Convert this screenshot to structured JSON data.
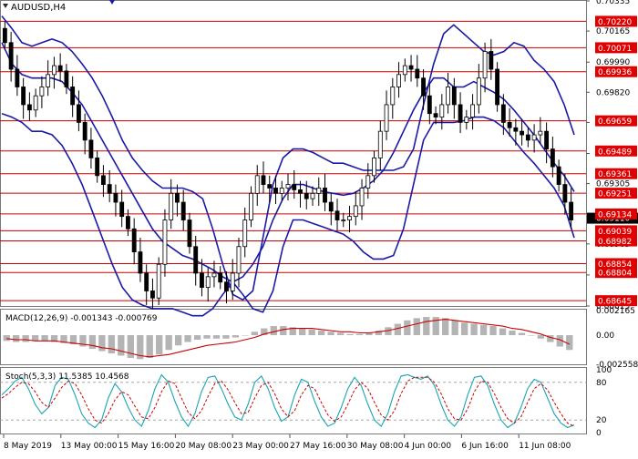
{
  "symbol_title": "AUDUSD,H4",
  "colors": {
    "candle": "#000000",
    "bollinger": "#1a1aa6",
    "level_line": "#cc0000",
    "level_box": "#e00000",
    "macd_hist": "#b4b4b4",
    "macd_signal": "#cc0000",
    "stoch_main": "#1aa5b5",
    "stoch_signal": "#cc0000",
    "grid": "#c8c8c8"
  },
  "chart_data": [
    {
      "type": "candlestick",
      "title": "AUDUSD,H4",
      "ylim": [
        0.68615,
        0.70335
      ],
      "price_axis_labels": [
        "0.70335",
        "0.70165",
        "0.69990",
        "0.69820",
        "0.69650",
        "0.69475",
        "0.69305",
        "0.69135",
        "0.68965",
        "0.68790",
        "0.68615"
      ],
      "current_price": "0.69110",
      "support_resistance_levels": [
        0.7022,
        0.70071,
        0.69936,
        0.69659,
        0.69489,
        0.69361,
        0.69251,
        0.69134,
        0.69039,
        0.68982,
        0.68854,
        0.68804,
        0.68645
      ],
      "close_series": [
        0.701,
        0.6995,
        0.6985,
        0.6975,
        0.6972,
        0.698,
        0.6985,
        0.6992,
        0.6997,
        0.6994,
        0.6985,
        0.6975,
        0.6965,
        0.6955,
        0.6945,
        0.6935,
        0.693,
        0.6925,
        0.692,
        0.6912,
        0.6905,
        0.6892,
        0.688,
        0.687,
        0.6866,
        0.6885,
        0.691,
        0.6925,
        0.692,
        0.691,
        0.6895,
        0.688,
        0.6872,
        0.6878,
        0.688,
        0.6875,
        0.687,
        0.688,
        0.6895,
        0.691,
        0.6925,
        0.6935,
        0.693,
        0.6928,
        0.6925,
        0.6928,
        0.693,
        0.6927,
        0.6925,
        0.6922,
        0.6925,
        0.6928,
        0.692,
        0.6915,
        0.691,
        0.691,
        0.6912,
        0.6918,
        0.6928,
        0.6935,
        0.6945,
        0.696,
        0.6975,
        0.6985,
        0.6992,
        0.6997,
        0.6995,
        0.699,
        0.698,
        0.697,
        0.6968,
        0.6975,
        0.6985,
        0.6975,
        0.6965,
        0.6968,
        0.6975,
        0.699,
        0.7005,
        0.6995,
        0.6975,
        0.6965,
        0.6962,
        0.696,
        0.6958,
        0.6955,
        0.6958,
        0.696,
        0.695,
        0.694,
        0.693,
        0.692,
        0.691
      ],
      "bollinger_upper": [
        0.7025,
        0.7018,
        0.701,
        0.7008,
        0.701,
        0.7012,
        0.701,
        0.7005,
        0.6998,
        0.699,
        0.698,
        0.6968,
        0.6955,
        0.6945,
        0.6938,
        0.6932,
        0.6928,
        0.6928,
        0.6928,
        0.6926,
        0.6922,
        0.6905,
        0.6885,
        0.6868,
        0.6865,
        0.687,
        0.69,
        0.693,
        0.6945,
        0.695,
        0.695,
        0.6948,
        0.6945,
        0.6942,
        0.6942,
        0.694,
        0.6938,
        0.6938,
        0.6938,
        0.6938,
        0.694,
        0.695,
        0.6975,
        0.6998,
        0.7015,
        0.702,
        0.7015,
        0.701,
        0.7005,
        0.7003,
        0.7005,
        0.701,
        0.7008,
        0.7,
        0.6995,
        0.6988,
        0.6975,
        0.6958
      ],
      "bollinger_middle": [
        0.701,
        0.6998,
        0.6992,
        0.699,
        0.699,
        0.699,
        0.6988,
        0.6982,
        0.6975,
        0.6965,
        0.6955,
        0.6945,
        0.6935,
        0.6925,
        0.6915,
        0.6905,
        0.6898,
        0.6894,
        0.689,
        0.6888,
        0.6885,
        0.6882,
        0.6878,
        0.6875,
        0.6878,
        0.6885,
        0.6895,
        0.691,
        0.6922,
        0.693,
        0.693,
        0.6928,
        0.6926,
        0.6925,
        0.6924,
        0.6925,
        0.6928,
        0.6932,
        0.6938,
        0.6948,
        0.696,
        0.6972,
        0.6982,
        0.699,
        0.699,
        0.6985,
        0.6985,
        0.6988,
        0.6985,
        0.6982,
        0.6978,
        0.6972,
        0.6965,
        0.6958,
        0.695,
        0.6942,
        0.6935,
        0.6926
      ],
      "bollinger_lower": [
        0.697,
        0.6968,
        0.6965,
        0.696,
        0.696,
        0.6958,
        0.6952,
        0.6942,
        0.693,
        0.6915,
        0.69,
        0.6885,
        0.6872,
        0.6865,
        0.6862,
        0.686,
        0.686,
        0.686,
        0.6858,
        0.6856,
        0.6856,
        0.686,
        0.6868,
        0.6875,
        0.6868,
        0.686,
        0.6858,
        0.687,
        0.6895,
        0.691,
        0.691,
        0.6908,
        0.6906,
        0.6904,
        0.6902,
        0.6898,
        0.6892,
        0.6888,
        0.6888,
        0.689,
        0.6905,
        0.693,
        0.6955,
        0.6965,
        0.6965,
        0.6965,
        0.6966,
        0.6968,
        0.6968,
        0.6966,
        0.6962,
        0.6955,
        0.6948,
        0.6942,
        0.6935,
        0.6928,
        0.6918,
        0.69
      ]
    },
    {
      "type": "bar",
      "title": "MACD(12,26,9)",
      "values_label": [
        "-0.001343",
        "-0.000769"
      ],
      "ylim": [
        -0.002558,
        0.002165
      ],
      "axis_labels": [
        "0.002165",
        "0.00",
        "-0.002558"
      ],
      "histogram": [
        -0.0005,
        -0.0006,
        -0.0006,
        -0.0005,
        -0.0005,
        -0.0006,
        -0.0007,
        -0.0008,
        -0.001,
        -0.0012,
        -0.0014,
        -0.0016,
        -0.0018,
        -0.002,
        -0.0021,
        -0.002,
        -0.0017,
        -0.0013,
        -0.0009,
        -0.0006,
        -0.0004,
        -0.0003,
        -0.0003,
        -0.0003,
        -0.0002,
        0.0,
        0.0003,
        0.0006,
        0.0008,
        0.0008,
        0.0007,
        0.0006,
        0.0005,
        0.0004,
        0.0003,
        0.0002,
        0.0001,
        0.0001,
        0.0002,
        0.0004,
        0.0007,
        0.001,
        0.0013,
        0.0015,
        0.0016,
        0.0016,
        0.0015,
        0.0013,
        0.0011,
        0.001,
        0.0009,
        0.0008,
        0.0006,
        0.0004,
        0.0002,
        0.0,
        -0.0003,
        -0.0006,
        -0.001,
        -0.0013
      ],
      "signal": [
        -0.0003,
        -0.0004,
        -0.0004,
        -0.0005,
        -0.0005,
        -0.0005,
        -0.0006,
        -0.0007,
        -0.0008,
        -0.0009,
        -0.0011,
        -0.0012,
        -0.0014,
        -0.0016,
        -0.0018,
        -0.0019,
        -0.0018,
        -0.0017,
        -0.0015,
        -0.0013,
        -0.0011,
        -0.0009,
        -0.0008,
        -0.0007,
        -0.0006,
        -0.0004,
        -0.0002,
        0.0001,
        0.0003,
        0.0005,
        0.0006,
        0.0006,
        0.0006,
        0.0005,
        0.0004,
        0.0003,
        0.0003,
        0.0002,
        0.0002,
        0.0003,
        0.0004,
        0.0006,
        0.0008,
        0.001,
        0.0012,
        0.0013,
        0.0014,
        0.0013,
        0.0012,
        0.0011,
        0.001,
        0.0009,
        0.0008,
        0.0006,
        0.0005,
        0.0003,
        0.0001,
        -0.0002,
        -0.0004,
        -0.0008
      ]
    },
    {
      "type": "line",
      "title": "Stoch(5,3,3)",
      "values_label": [
        "11.5385",
        "10.4568"
      ],
      "ylim": [
        0,
        100
      ],
      "axis_labels": [
        "100",
        "80",
        "20",
        "0"
      ],
      "reference_levels": [
        80,
        20
      ],
      "main": [
        60,
        70,
        82,
        88,
        70,
        45,
        30,
        40,
        75,
        88,
        85,
        60,
        30,
        15,
        8,
        20,
        55,
        78,
        65,
        40,
        20,
        10,
        35,
        70,
        92,
        80,
        50,
        25,
        10,
        30,
        65,
        88,
        90,
        70,
        45,
        25,
        20,
        45,
        80,
        90,
        70,
        40,
        18,
        25,
        60,
        85,
        80,
        50,
        25,
        10,
        15,
        40,
        70,
        88,
        75,
        45,
        20,
        10,
        30,
        65,
        90,
        92,
        88,
        85,
        90,
        75,
        45,
        20,
        10,
        25,
        60,
        88,
        90,
        75,
        45,
        20,
        8,
        15,
        40,
        70,
        85,
        80,
        55,
        30,
        15,
        8,
        12
      ],
      "signal": [
        55,
        62,
        72,
        80,
        78,
        65,
        48,
        40,
        55,
        72,
        82,
        78,
        60,
        38,
        20,
        15,
        30,
        52,
        65,
        60,
        42,
        25,
        22,
        40,
        65,
        82,
        78,
        55,
        32,
        22,
        35,
        58,
        78,
        82,
        68,
        48,
        30,
        32,
        55,
        75,
        80,
        62,
        38,
        25,
        35,
        60,
        75,
        70,
        48,
        28,
        18,
        25,
        45,
        68,
        80,
        70,
        48,
        28,
        20,
        35,
        62,
        82,
        88,
        88,
        88,
        80,
        62,
        38,
        22,
        20,
        38,
        65,
        82,
        80,
        62,
        40,
        22,
        15,
        25,
        48,
        70,
        78,
        68,
        48,
        30,
        15,
        10
      ]
    }
  ],
  "time_axis_labels": [
    "8 May 2019",
    "13 May 00:00",
    "15 May 16:00",
    "20 May 08:00",
    "23 May 00:00",
    "27 May 16:00",
    "30 May 08:00",
    "4 Jun 00:00",
    "6 Jun 16:00",
    "11 Jun 08:00"
  ]
}
